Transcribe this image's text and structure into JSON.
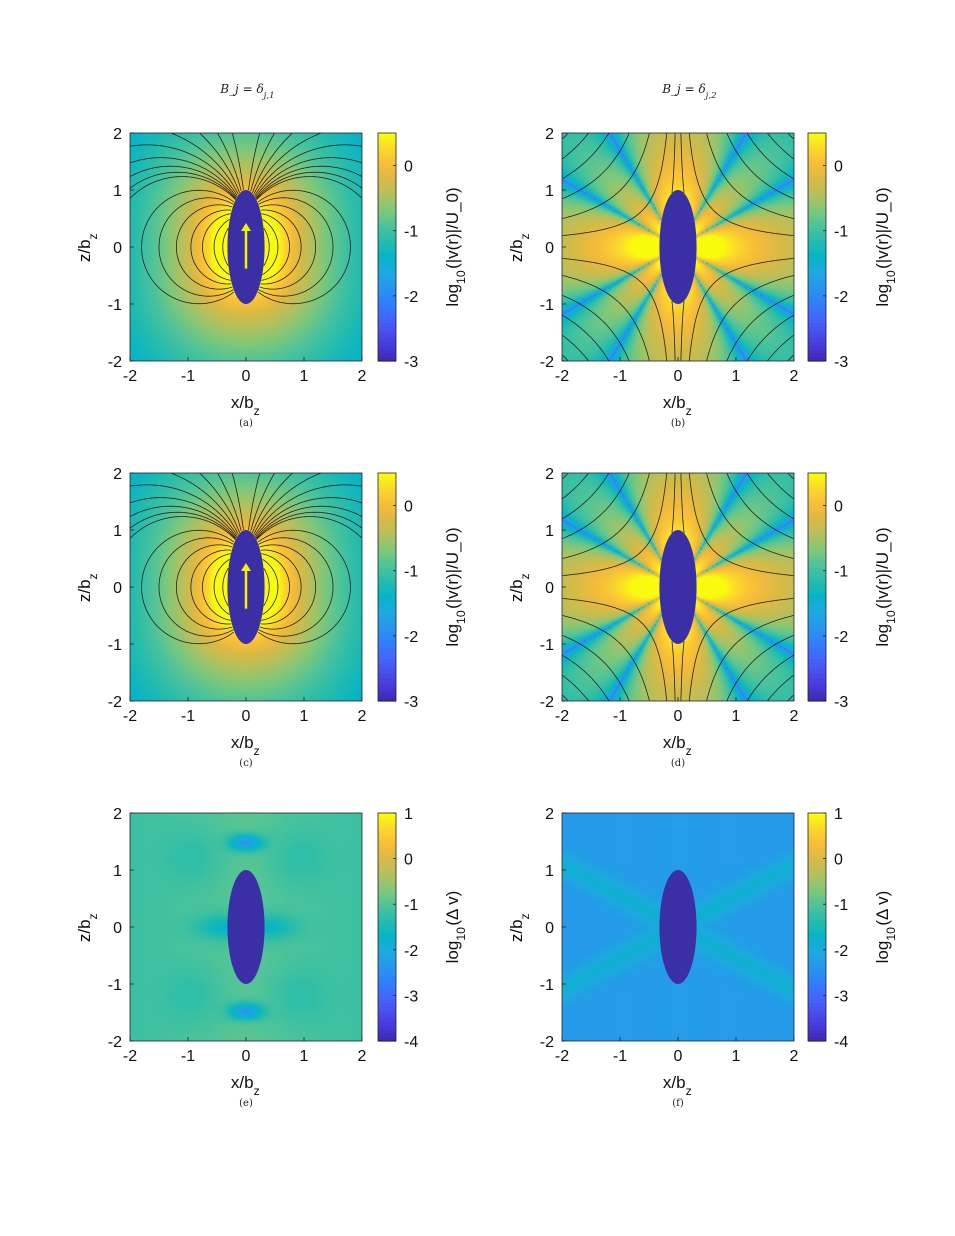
{
  "column_titles": [
    "B_j = δ_{j,1}",
    "B_j = δ_{j,2}"
  ],
  "colors": {
    "particle": "#3b2fa6",
    "arrow": "#f5f200",
    "streamline": "#222222",
    "parula": [
      "#3e26a8",
      "#4538d7",
      "#484fed",
      "#4367fd",
      "#2f80fa",
      "#2797eb",
      "#1caadf",
      "#06b4c7",
      "#25bcad",
      "#4cc39b",
      "#7dc87b",
      "#b1c15f",
      "#d6ba47",
      "#f7bc3a",
      "#fbd52e",
      "#f9fb0e"
    ]
  },
  "chart_data": [
    {
      "id": "a",
      "caption": "(a)",
      "type": "heatmap",
      "title": "",
      "xlabel": "x/b",
      "xlabel_sub": "z",
      "ylabel": "z/b",
      "ylabel_sub": "z",
      "xlim": [
        -2,
        2
      ],
      "ylim": [
        -2,
        2
      ],
      "xticks": [
        "-2",
        "-1",
        "0",
        "1",
        "2"
      ],
      "yticks": [
        "-2",
        "-1",
        "0",
        "1",
        "2"
      ],
      "colorbar": {
        "label": "log_{10}(|v(r)|/U_0)",
        "range": [
          -3,
          0.5
        ],
        "ticks": [
          "0",
          "-1",
          "-2",
          "-3"
        ],
        "tick_values": [
          0,
          -1,
          -2,
          -3
        ]
      },
      "particle": {
        "semi_axis_x": 0.32,
        "semi_axis_z": 1.0
      },
      "field": "dipole_z",
      "streamlines": true,
      "arrow": true
    },
    {
      "id": "b",
      "caption": "(b)",
      "type": "heatmap",
      "title": "",
      "xlabel": "x/b",
      "xlabel_sub": "z",
      "ylabel": "z/b",
      "ylabel_sub": "z",
      "xlim": [
        -2,
        2
      ],
      "ylim": [
        -2,
        2
      ],
      "xticks": [
        "-2",
        "-1",
        "0",
        "1",
        "2"
      ],
      "yticks": [
        "-2",
        "-1",
        "0",
        "1",
        "2"
      ],
      "colorbar": {
        "label": "log_{10}(|v(r)|/U_0)",
        "range": [
          -3,
          0.5
        ],
        "ticks": [
          "0",
          "-1",
          "-2",
          "-3"
        ],
        "tick_values": [
          0,
          -1,
          -2,
          -3
        ]
      },
      "particle": {
        "semi_axis_x": 0.32,
        "semi_axis_z": 1.0
      },
      "field": "stresslet",
      "streamlines": true,
      "arrow": false
    },
    {
      "id": "c",
      "caption": "(c)",
      "type": "heatmap",
      "title": "",
      "xlabel": "x/b",
      "xlabel_sub": "z",
      "ylabel": "z/b",
      "ylabel_sub": "z",
      "xlim": [
        -2,
        2
      ],
      "ylim": [
        -2,
        2
      ],
      "xticks": [
        "-2",
        "-1",
        "0",
        "1",
        "2"
      ],
      "yticks": [
        "-2",
        "-1",
        "0",
        "1",
        "2"
      ],
      "colorbar": {
        "label": "log_{10}(|v(r)|/U_0)",
        "range": [
          -3,
          0.5
        ],
        "ticks": [
          "0",
          "-1",
          "-2",
          "-3"
        ],
        "tick_values": [
          0,
          -1,
          -2,
          -3
        ]
      },
      "particle": {
        "semi_axis_x": 0.32,
        "semi_axis_z": 1.0
      },
      "field": "dipole_z",
      "streamlines": true,
      "arrow": true
    },
    {
      "id": "d",
      "caption": "(d)",
      "type": "heatmap",
      "title": "",
      "xlabel": "x/b",
      "xlabel_sub": "z",
      "ylabel": "z/b",
      "ylabel_sub": "z",
      "xlim": [
        -2,
        2
      ],
      "ylim": [
        -2,
        2
      ],
      "xticks": [
        "-2",
        "-1",
        "0",
        "1",
        "2"
      ],
      "yticks": [
        "-2",
        "-1",
        "0",
        "1",
        "2"
      ],
      "colorbar": {
        "label": "log_{10}(|v(r)|/U_0)",
        "range": [
          -3,
          0.5
        ],
        "ticks": [
          "0",
          "-1",
          "-2",
          "-3"
        ],
        "tick_values": [
          0,
          -1,
          -2,
          -3
        ]
      },
      "particle": {
        "semi_axis_x": 0.32,
        "semi_axis_z": 1.0
      },
      "field": "stresslet",
      "streamlines": true,
      "arrow": false
    },
    {
      "id": "e",
      "caption": "(e)",
      "type": "heatmap",
      "title": "",
      "xlabel": "x/b",
      "xlabel_sub": "z",
      "ylabel": "z/b",
      "ylabel_sub": "z",
      "xlim": [
        -2,
        2
      ],
      "ylim": [
        -2,
        2
      ],
      "xticks": [
        "-2",
        "-1",
        "0",
        "1",
        "2"
      ],
      "yticks": [
        "-2",
        "-1",
        "0",
        "1",
        "2"
      ],
      "colorbar": {
        "label": "log_{10}(Δ v)",
        "range": [
          -4,
          1
        ],
        "ticks": [
          "1",
          "0",
          "-1",
          "-2",
          "-3",
          "-4"
        ],
        "tick_values": [
          1,
          0,
          -1,
          -2,
          -3,
          -4
        ]
      },
      "particle": {
        "semi_axis_x": 0.32,
        "semi_axis_z": 1.0
      },
      "field": "error_1",
      "streamlines": false,
      "arrow": false
    },
    {
      "id": "f",
      "caption": "(f)",
      "type": "heatmap",
      "title": "",
      "xlabel": "x/b",
      "xlabel_sub": "z",
      "ylabel": "z/b",
      "ylabel_sub": "z",
      "xlim": [
        -2,
        2
      ],
      "ylim": [
        -2,
        2
      ],
      "xticks": [
        "-2",
        "-1",
        "0",
        "1",
        "2"
      ],
      "yticks": [
        "-2",
        "-1",
        "0",
        "1",
        "2"
      ],
      "colorbar": {
        "label": "log_{10}(Δ v)",
        "range": [
          -4,
          1
        ],
        "ticks": [
          "1",
          "0",
          "-1",
          "-2",
          "-3",
          "-4"
        ],
        "tick_values": [
          1,
          0,
          -1,
          -2,
          -3,
          -4
        ]
      },
      "particle": {
        "semi_axis_x": 0.32,
        "semi_axis_z": 1.0
      },
      "field": "error_2",
      "streamlines": false,
      "arrow": false
    }
  ]
}
